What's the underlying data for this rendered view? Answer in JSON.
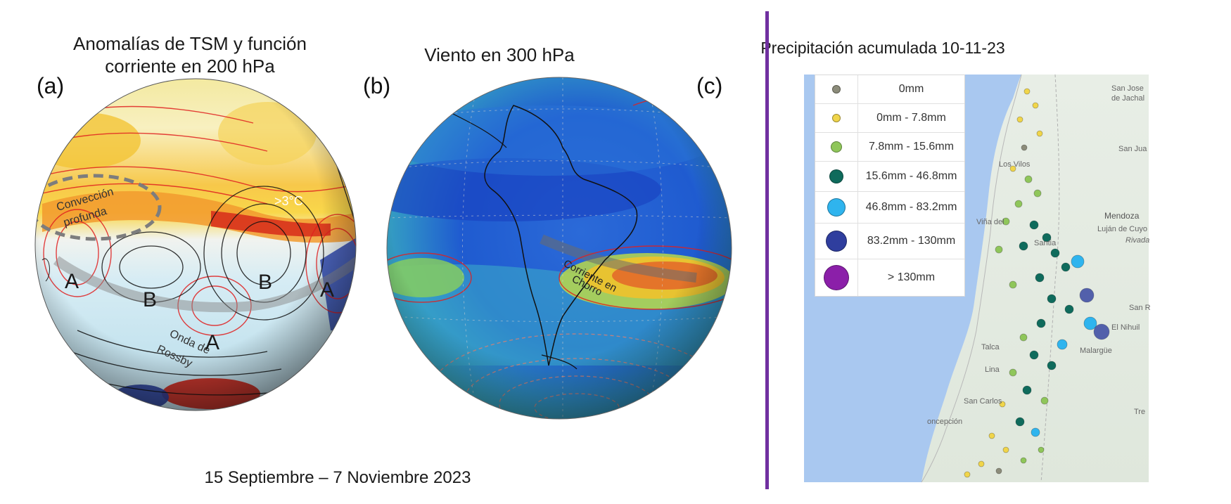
{
  "panel_a": {
    "label": "(a)",
    "title_line1": "Anomalías de TSM y función",
    "title_line2": "corriente en 200 hPa",
    "annotations": {
      "conveccion1": "Convección",
      "conveccion2": "profunda",
      "sst": ">3°C",
      "onda1": "Onda de",
      "onda2": "Rossby",
      "high": "A",
      "low": "B"
    }
  },
  "panel_b": {
    "label": "(b)",
    "title": "Viento en 300 hPa",
    "annotations": {
      "jet1": "Corriente en",
      "jet2": "Chorro"
    }
  },
  "panel_c": {
    "label": "(c)",
    "title": "Precipitación acumulada 10-11-23",
    "legend": [
      {
        "label": "0mm",
        "color": "#8c8c7a",
        "size": 10
      },
      {
        "label": "0mm - 7.8mm",
        "color": "#f0d54a",
        "size": 10
      },
      {
        "label": "7.8mm - 15.6mm",
        "color": "#8fc65a",
        "size": 14
      },
      {
        "label": "15.6mm - 46.8mm",
        "color": "#0f6b5c",
        "size": 18
      },
      {
        "label": "46.8mm - 83.2mm",
        "color": "#2fb4ee",
        "size": 24
      },
      {
        "label": "83.2mm - 130mm",
        "color": "#2f3e9e",
        "size": 28
      },
      {
        "label": "> 130mm",
        "color": "#8b1fa9",
        "size": 34
      }
    ],
    "map_labels": {
      "san_jose": "San Jose",
      "de_jachal": "de Jachal",
      "los_vilos": "Los Vilos",
      "mendoza": "Mendoza",
      "lujan": "Luján de Cuyo",
      "rivadavia": "Rivada",
      "vina": "Viña del",
      "santiago": "Santia",
      "el_nihuil": "El Nihuil",
      "malargue": "Malargüe",
      "talca": "Talca",
      "linares": "Lina",
      "san_carlos": "San Carlos",
      "concepcion": "oncepción",
      "san_jua": "San Jua",
      "san_ra": "San R",
      "tres": "Tre"
    }
  },
  "footer": "15 Septiembre – 7 Noviembre 2023"
}
